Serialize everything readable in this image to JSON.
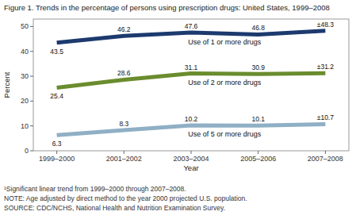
{
  "chart_data": {
    "type": "line",
    "title": "Figure 1. Trends in the percentage of persons using prescription drugs: United States, 1999–2008",
    "xlabel": "Year",
    "ylabel": "Percent",
    "categories": [
      "1999–2000",
      "2001–2002",
      "2003–2004",
      "2005–2006",
      "2007–2008"
    ],
    "series": [
      {
        "name": "Use of 1 or more drugs",
        "color": "#1c3a6e",
        "values": [
          43.5,
          46.2,
          47.6,
          46.8,
          48.3
        ],
        "value_labels": [
          "43.5",
          "46.2",
          "47.6",
          "46.8",
          "±48.3"
        ]
      },
      {
        "name": "Use of 2 or more drugs",
        "color": "#6a8c2e",
        "values": [
          25.4,
          28.6,
          31.1,
          30.9,
          31.2
        ],
        "value_labels": [
          "25.4",
          "28.6",
          "31.1",
          "30.9",
          "±31.2"
        ]
      },
      {
        "name": "Use of 5 or more drugs",
        "color": "#8fafc5",
        "values": [
          6.3,
          8.3,
          10.2,
          10.1,
          10.7
        ],
        "value_labels": [
          "6.3",
          "8.3",
          "10.2",
          "10.1",
          "±10.7"
        ]
      }
    ],
    "ylim": [
      0,
      53
    ],
    "yticks": [
      0,
      10,
      20,
      30,
      40,
      50
    ],
    "grid": false,
    "data_labels": true,
    "annotations": [
      "¹Significant linear trend from 1999–2000 through 2007–2008.",
      "NOTE: Age adjusted by direct method to the year 2000 projected U.S. population.",
      "SOURCE: CDC/NCHS, National Health and Nutrition Examination Survey."
    ]
  }
}
